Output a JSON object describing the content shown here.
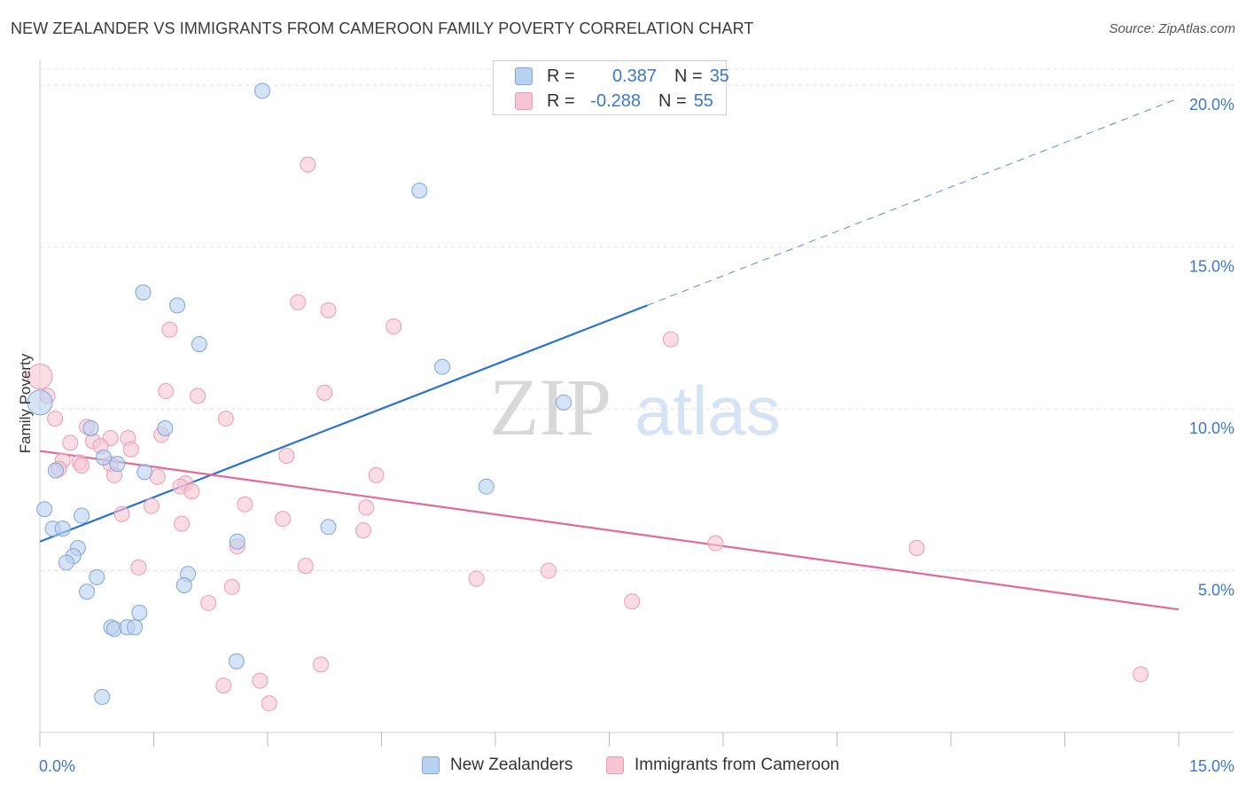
{
  "title": "NEW ZEALANDER VS IMMIGRANTS FROM CAMEROON FAMILY POVERTY CORRELATION CHART",
  "source": "Source: ZipAtlas.com",
  "watermark": {
    "part1": "ZIP",
    "part2": "atlas"
  },
  "legend": {
    "rows": [
      {
        "r_label": "R =",
        "r_value": "0.387",
        "n_label": "N =",
        "n_value": "35"
      },
      {
        "r_label": "R =",
        "r_value": "-0.288",
        "n_label": "N =",
        "n_value": "55"
      }
    ]
  },
  "bottom_legend": {
    "series1": "New Zealanders",
    "series2": "Immigrants from Cameroon"
  },
  "colors": {
    "blue_fill": "#b9d1f0",
    "blue_stroke": "#7ea6dc",
    "blue_line": "#2a72d0",
    "pink_fill": "#f7c4d3",
    "pink_stroke": "#ec9bb4",
    "pink_line": "#e4689a",
    "grid": "#e0e0e0",
    "tick_label": "#3c78c8"
  },
  "chart_data": {
    "type": "scatter",
    "title": "NEW ZEALANDER VS IMMIGRANTS FROM CAMEROON FAMILY POVERTY CORRELATION CHART",
    "xlabel": "",
    "ylabel": "Family Poverty",
    "xlim": [
      0,
      15
    ],
    "ylim": [
      0,
      20.5
    ],
    "x_tick_labels": [
      {
        "value": 0,
        "label": "0.0%"
      },
      {
        "value": 15,
        "label": "15.0%"
      }
    ],
    "y_tick_labels": [
      {
        "value": 5,
        "label": "5.0%"
      },
      {
        "value": 10,
        "label": "10.0%"
      },
      {
        "value": 15,
        "label": "15.0%"
      },
      {
        "value": 20,
        "label": "20.0%"
      }
    ],
    "series": [
      {
        "name": "New Zealanders",
        "color": "blue",
        "r": 0.387,
        "n": 35,
        "trend": {
          "x0": 0,
          "y0": 5.9,
          "x1": 8.0,
          "y1": 13.2,
          "dash_to_x": 15.0,
          "dash_to_y": 19.6
        },
        "points": [
          [
            2.93,
            19.83
          ],
          [
            5.0,
            16.75
          ],
          [
            1.36,
            13.6
          ],
          [
            1.81,
            13.2
          ],
          [
            2.1,
            12.0
          ],
          [
            5.3,
            11.3
          ],
          [
            0.0,
            10.2
          ],
          [
            6.9,
            10.2
          ],
          [
            1.65,
            9.4
          ],
          [
            0.67,
            9.4
          ],
          [
            0.84,
            8.5
          ],
          [
            1.02,
            8.3
          ],
          [
            0.21,
            8.1
          ],
          [
            1.38,
            8.05
          ],
          [
            5.88,
            7.6
          ],
          [
            0.06,
            6.9
          ],
          [
            0.55,
            6.7
          ],
          [
            0.17,
            6.3
          ],
          [
            0.3,
            6.3
          ],
          [
            3.8,
            6.35
          ],
          [
            2.6,
            5.9
          ],
          [
            0.5,
            5.7
          ],
          [
            0.44,
            5.45
          ],
          [
            0.35,
            5.25
          ],
          [
            1.95,
            4.9
          ],
          [
            0.75,
            4.8
          ],
          [
            1.9,
            4.55
          ],
          [
            0.62,
            4.35
          ],
          [
            1.31,
            3.7
          ],
          [
            0.94,
            3.25
          ],
          [
            0.98,
            3.2
          ],
          [
            1.15,
            3.25
          ],
          [
            1.25,
            3.25
          ],
          [
            2.59,
            2.2
          ],
          [
            0.82,
            1.1
          ]
        ]
      },
      {
        "name": "Immigrants from Cameroon",
        "color": "pink",
        "r": -0.288,
        "n": 55,
        "trend": {
          "x0": 0,
          "y0": 8.7,
          "x1": 15.0,
          "y1": 3.8
        },
        "points": [
          [
            3.53,
            17.55
          ],
          [
            3.4,
            13.3
          ],
          [
            3.8,
            13.05
          ],
          [
            4.66,
            12.55
          ],
          [
            1.71,
            12.45
          ],
          [
            8.31,
            12.15
          ],
          [
            0.0,
            11.0
          ],
          [
            0.1,
            10.4
          ],
          [
            1.66,
            10.55
          ],
          [
            2.08,
            10.4
          ],
          [
            3.75,
            10.5
          ],
          [
            0.2,
            9.7
          ],
          [
            2.45,
            9.7
          ],
          [
            0.62,
            9.45
          ],
          [
            1.6,
            9.2
          ],
          [
            0.93,
            9.1
          ],
          [
            1.16,
            9.1
          ],
          [
            0.7,
            9.0
          ],
          [
            0.4,
            8.95
          ],
          [
            0.8,
            8.85
          ],
          [
            1.2,
            8.75
          ],
          [
            0.3,
            8.4
          ],
          [
            0.52,
            8.35
          ],
          [
            0.55,
            8.25
          ],
          [
            0.93,
            8.3
          ],
          [
            0.25,
            8.15
          ],
          [
            0.98,
            7.95
          ],
          [
            3.25,
            8.55
          ],
          [
            1.55,
            7.9
          ],
          [
            4.43,
            7.95
          ],
          [
            1.92,
            7.7
          ],
          [
            1.85,
            7.6
          ],
          [
            2.0,
            7.45
          ],
          [
            2.7,
            7.05
          ],
          [
            1.47,
            7.0
          ],
          [
            4.3,
            6.95
          ],
          [
            1.08,
            6.75
          ],
          [
            3.2,
            6.6
          ],
          [
            1.87,
            6.45
          ],
          [
            4.26,
            6.25
          ],
          [
            8.9,
            5.85
          ],
          [
            11.55,
            5.7
          ],
          [
            2.6,
            5.75
          ],
          [
            1.3,
            5.1
          ],
          [
            3.5,
            5.15
          ],
          [
            6.7,
            5.0
          ],
          [
            5.75,
            4.75
          ],
          [
            2.53,
            4.5
          ],
          [
            2.22,
            4.0
          ],
          [
            7.8,
            4.05
          ],
          [
            3.7,
            2.1
          ],
          [
            2.9,
            1.6
          ],
          [
            2.42,
            1.45
          ],
          [
            14.5,
            1.8
          ],
          [
            3.02,
            0.9
          ]
        ]
      }
    ]
  }
}
